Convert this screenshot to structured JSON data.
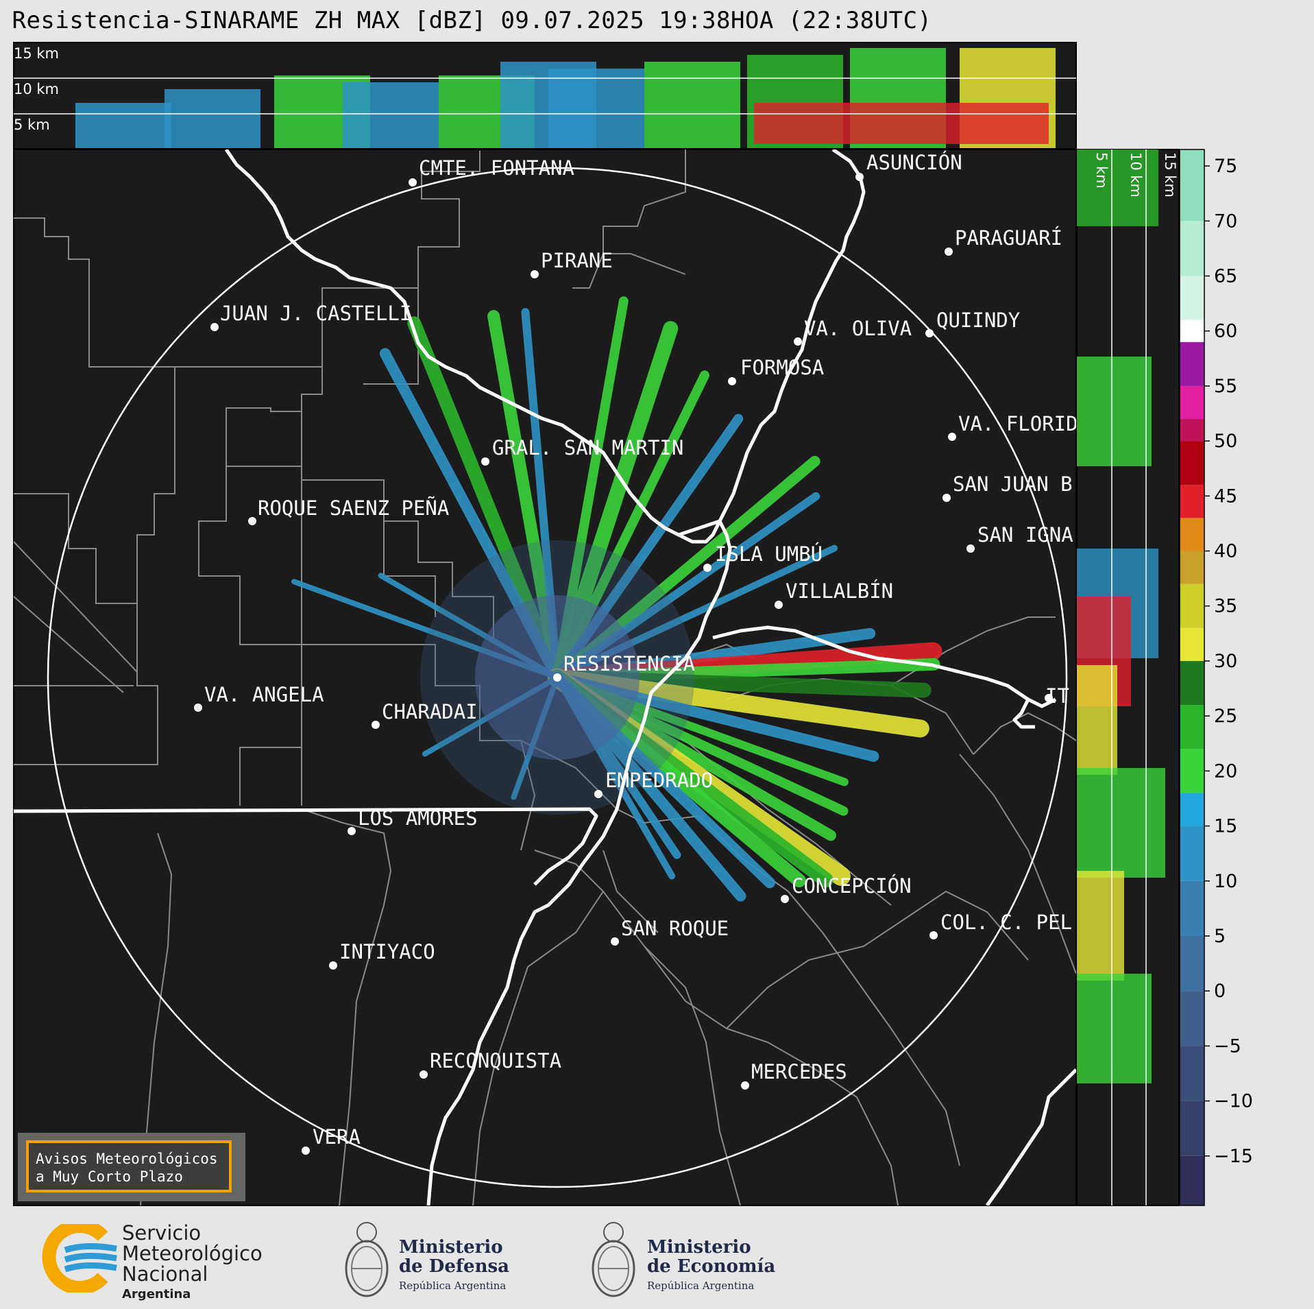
{
  "title": "Resistencia-SINARAME ZH MAX [dBZ] 09.07.2025 19:38HOA (22:38UTC)",
  "height_panel": {
    "top_labels": [
      "15 km",
      "10 km",
      "5 km"
    ],
    "side_labels": [
      "5 km",
      "10 km",
      "15 km"
    ]
  },
  "cities": [
    {
      "name": "CMTE. FONTANA"
    },
    {
      "name": "ASUNCIÓN"
    },
    {
      "name": "PIRANE"
    },
    {
      "name": "PARAGUARÍ"
    },
    {
      "name": "JUAN J. CASTELLI"
    },
    {
      "name": "VA. OLIVA"
    },
    {
      "name": "QUIINDY"
    },
    {
      "name": "FORMOSA"
    },
    {
      "name": "VA. FLORIDA"
    },
    {
      "name": "GRAL. SAN MARTIN"
    },
    {
      "name": "SAN JUAN B"
    },
    {
      "name": "ROQUE SAENZ PEÑA"
    },
    {
      "name": "SAN IGNA"
    },
    {
      "name": "ISLA UMBÚ"
    },
    {
      "name": "VILLALBÍN"
    },
    {
      "name": "RESISTENCIA"
    },
    {
      "name": "VA. ANGELA"
    },
    {
      "name": "CHARADAI"
    },
    {
      "name": "IT"
    },
    {
      "name": "EMPEDRADO"
    },
    {
      "name": "LOS AMORES"
    },
    {
      "name": "CONCEPCIÓN"
    },
    {
      "name": "COL. C. PEL"
    },
    {
      "name": "SAN ROQUE"
    },
    {
      "name": "INTIYACO"
    },
    {
      "name": "RECONQUISTA"
    },
    {
      "name": "MERCEDES"
    },
    {
      "name": "VERA"
    }
  ],
  "colorbar": {
    "ticks": [
      "75",
      "70",
      "65",
      "60",
      "55",
      "50",
      "45",
      "40",
      "35",
      "30",
      "25",
      "20",
      "15",
      "10",
      "5",
      "0",
      "−5",
      "−10",
      "−15"
    ],
    "ticks_value": [
      75,
      70,
      65,
      60,
      55,
      50,
      45,
      40,
      35,
      30,
      25,
      20,
      15,
      10,
      5,
      0,
      -5,
      -10,
      -15
    ],
    "range": [
      -19.5,
      76.5
    ],
    "unit": "dBZ"
  },
  "aviso": {
    "line1": "Avisos Meteorológicos",
    "line2": "a Muy Corto Plazo"
  },
  "logos": {
    "smn": {
      "l1": "Servicio",
      "l2": "Meteorológico",
      "l3": "Nacional",
      "l4": "Argentina"
    },
    "defensa": {
      "l1": "Ministerio",
      "l2": "de Defensa",
      "l3": "República Argentina"
    },
    "economia": {
      "l1": "Ministerio",
      "l2": "de Economía",
      "l3": "República Argentina"
    }
  }
}
